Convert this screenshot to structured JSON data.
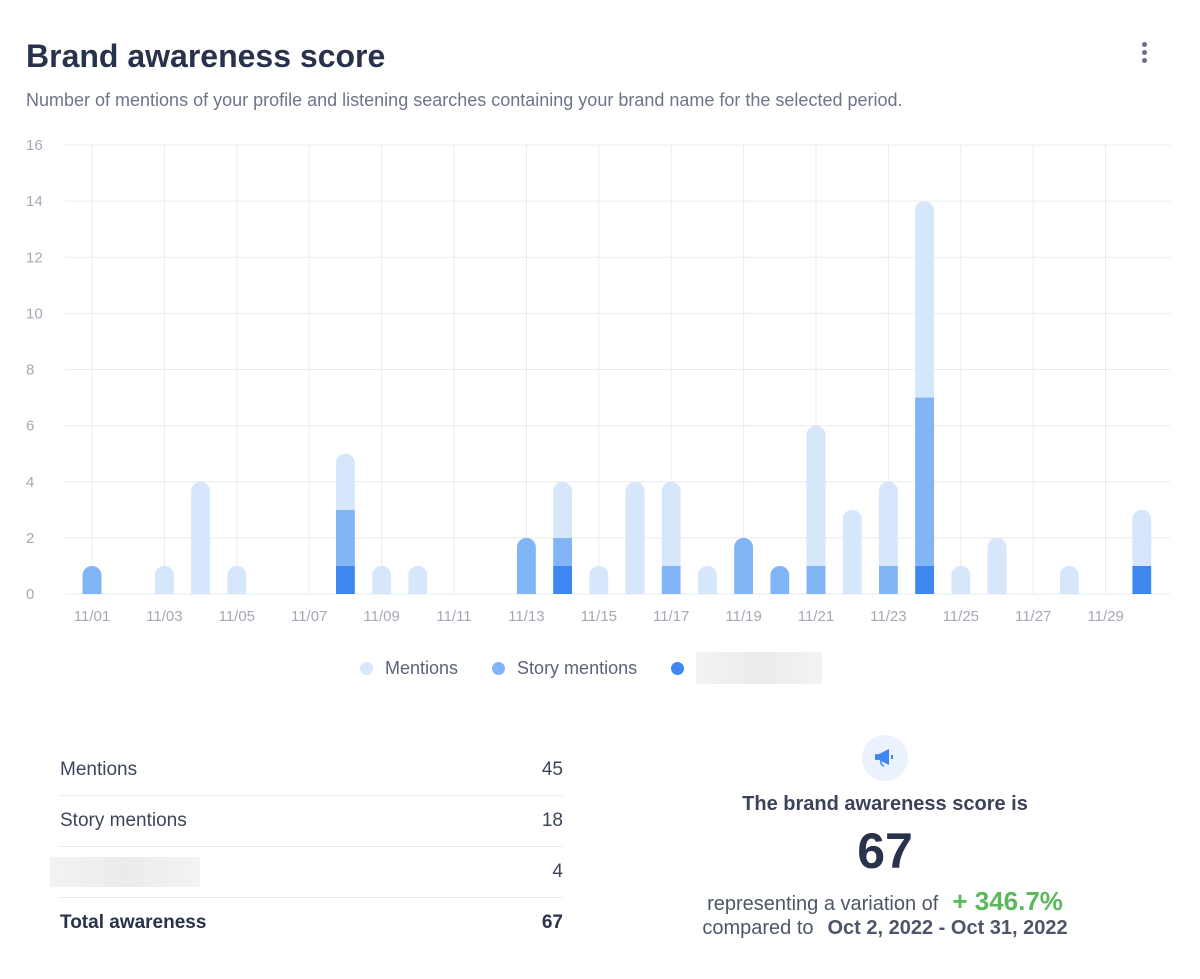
{
  "header": {
    "title": "Brand awareness score",
    "subtitle": "Number of mentions of your profile and listening searches containing your brand name for the selected period."
  },
  "menu_icon": "kebab-vertical-icon",
  "colors": {
    "mentions": "#d6e6fb",
    "story_mentions": "#82b5f5",
    "third": "#3f87f0",
    "positive": "#5cb85c"
  },
  "chart_data": {
    "type": "bar",
    "stacked": true,
    "x": [
      "11/01",
      "11/02",
      "11/03",
      "11/04",
      "11/05",
      "11/06",
      "11/07",
      "11/08",
      "11/09",
      "11/10",
      "11/11",
      "11/12",
      "11/13",
      "11/14",
      "11/15",
      "11/16",
      "11/17",
      "11/18",
      "11/19",
      "11/20",
      "11/21",
      "11/22",
      "11/23",
      "11/24",
      "11/25",
      "11/26",
      "11/27",
      "11/28",
      "11/29",
      "11/30"
    ],
    "x_tick_labels": [
      "11/01",
      "11/03",
      "11/05",
      "11/07",
      "11/09",
      "11/11",
      "11/13",
      "11/15",
      "11/17",
      "11/19",
      "11/21",
      "11/23",
      "11/25",
      "11/27",
      "11/29"
    ],
    "ylim": [
      0,
      16
    ],
    "y_ticks": [
      0,
      2,
      4,
      6,
      8,
      10,
      12,
      14,
      16
    ],
    "grid": true,
    "legend_position": "bottom",
    "series": [
      {
        "name": "Mentions",
        "values": [
          0,
          0,
          1,
          4,
          1,
          0,
          0,
          2,
          1,
          1,
          0,
          0,
          0,
          2,
          1,
          4,
          3,
          1,
          0,
          0,
          5,
          3,
          3,
          7,
          1,
          2,
          0,
          1,
          0,
          2
        ]
      },
      {
        "name": "Story mentions",
        "values": [
          1,
          0,
          0,
          0,
          0,
          0,
          0,
          2,
          0,
          0,
          0,
          0,
          2,
          1,
          0,
          0,
          1,
          0,
          2,
          1,
          1,
          0,
          1,
          6,
          0,
          0,
          0,
          0,
          0,
          0
        ]
      },
      {
        "values": [
          0,
          0,
          0,
          0,
          0,
          0,
          0,
          1,
          0,
          0,
          0,
          0,
          0,
          1,
          0,
          0,
          0,
          0,
          0,
          0,
          0,
          0,
          0,
          1,
          0,
          0,
          0,
          0,
          0,
          1
        ]
      }
    ]
  },
  "table": {
    "rows": [
      {
        "label": "Mentions",
        "value": "45"
      },
      {
        "label": "Story mentions",
        "value": "18"
      },
      {
        "value": "4"
      },
      {
        "label": "Total awareness",
        "value": "67"
      }
    ]
  },
  "summary": {
    "icon": "megaphone-icon",
    "heading": "The brand awareness score is",
    "score": "67",
    "variation_text": "representing a variation of",
    "variation": "+ 346.7%",
    "compared_text": "compared to",
    "period": "Oct 2, 2022 - Oct 31, 2022"
  }
}
